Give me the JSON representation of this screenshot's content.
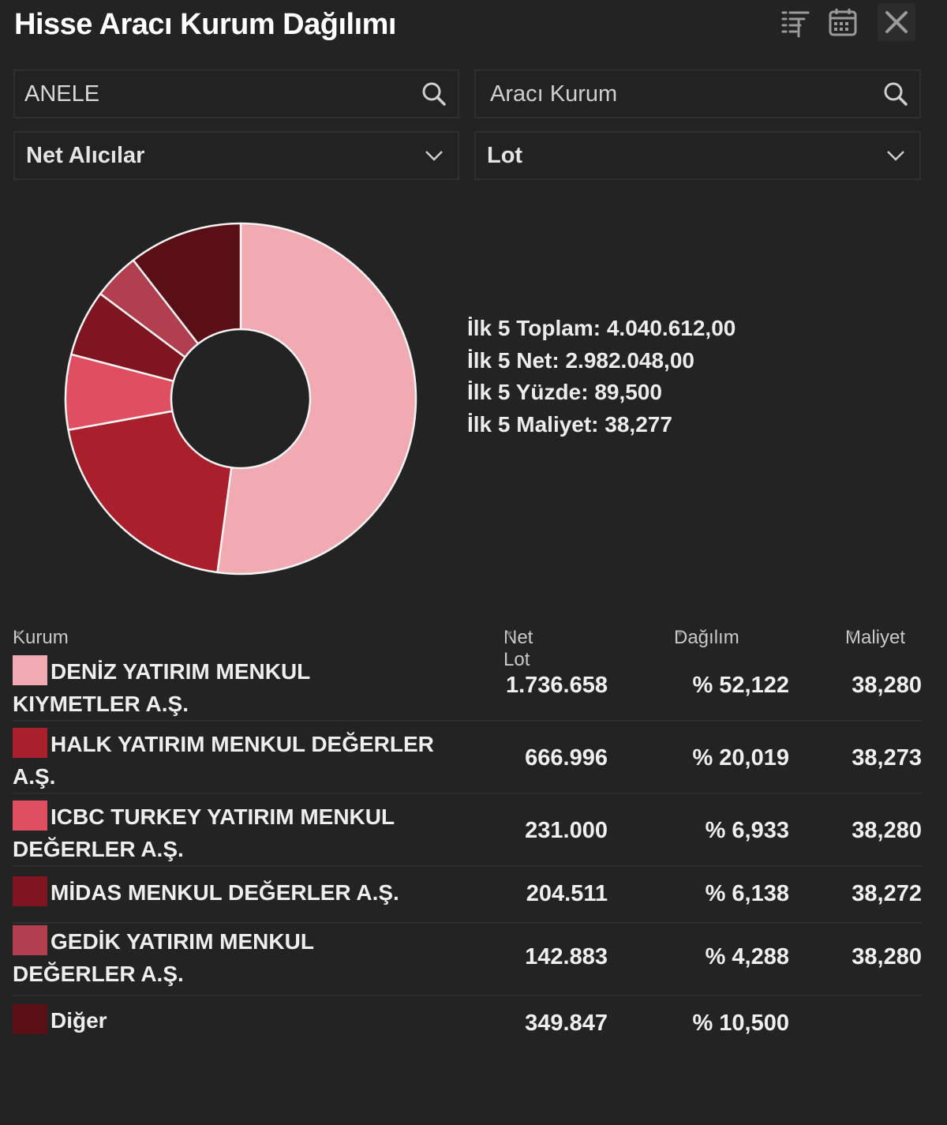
{
  "header": {
    "title": "Hisse Aracı Kurum Dağılımı",
    "icons": [
      "filter-list-icon",
      "calendar-icon",
      "close-icon"
    ]
  },
  "filters": {
    "stock_value": "ANELE",
    "broker_placeholder": "Aracı Kurum",
    "side_select": "Net Alıcılar",
    "unit_select": "Lot"
  },
  "summary": {
    "total": "İlk 5 Toplam: 4.040.612,00",
    "net": "İlk 5 Net: 2.982.048,00",
    "percent": "İlk 5 Yüzde: 89,500",
    "cost": "İlk 5 Maliyet: 38,277"
  },
  "chart_data": {
    "type": "pie",
    "variant": "donut",
    "title": "",
    "categories": [
      "DENİZ YATIRIM MENKUL KIYMETLER A.Ş.",
      "HALK YATIRIM MENKUL DEĞERLER A.Ş.",
      "ICBC TURKEY YATIRIM MENKUL DEĞERLER A.Ş.",
      "MİDAS MENKUL DEĞERLER A.Ş.",
      "GEDİK YATIRIM MENKUL DEĞERLER A.Ş.",
      "Diğer"
    ],
    "values": [
      52.122,
      20.019,
      6.933,
      6.138,
      4.288,
      10.5
    ],
    "colors": [
      "#f2aab2",
      "#a91f2b",
      "#e04f61",
      "#7e1520",
      "#b13f4f",
      "#5a0e16"
    ]
  },
  "table": {
    "columns": {
      "kurum": "Kurum",
      "net_lot": "Net Lot",
      "dagilim": "Dağılım",
      "maliyet": "Maliyet"
    },
    "rows": [
      {
        "line1": "DENİZ YATIRIM MENKUL",
        "line2": "KIYMETLER A.Ş.",
        "net_lot": "1.736.658",
        "dagilim": "% 52,122",
        "maliyet": "38,280",
        "color": "#f2aab2"
      },
      {
        "line1": "HALK YATIRIM MENKUL DEĞERLER",
        "line2": "A.Ş.",
        "net_lot": "666.996",
        "dagilim": "% 20,019",
        "maliyet": "38,273",
        "color": "#a91f2b"
      },
      {
        "line1": "ICBC TURKEY YATIRIM MENKUL",
        "line2": "DEĞERLER A.Ş.",
        "net_lot": "231.000",
        "dagilim": "% 6,933",
        "maliyet": "38,280",
        "color": "#e04f61"
      },
      {
        "line1": "MİDAS MENKUL DEĞERLER A.Ş.",
        "line2": "",
        "net_lot": "204.511",
        "dagilim": "% 6,138",
        "maliyet": "38,272",
        "color": "#7e1520"
      },
      {
        "line1": "GEDİK YATIRIM MENKUL",
        "line2": "DEĞERLER A.Ş.",
        "net_lot": "142.883",
        "dagilim": "% 4,288",
        "maliyet": "38,280",
        "color": "#b13f4f"
      },
      {
        "line1": "Diğer",
        "line2": "",
        "net_lot": "349.847",
        "dagilim": "% 10,500",
        "maliyet": "",
        "color": "#5a0e16"
      }
    ]
  }
}
